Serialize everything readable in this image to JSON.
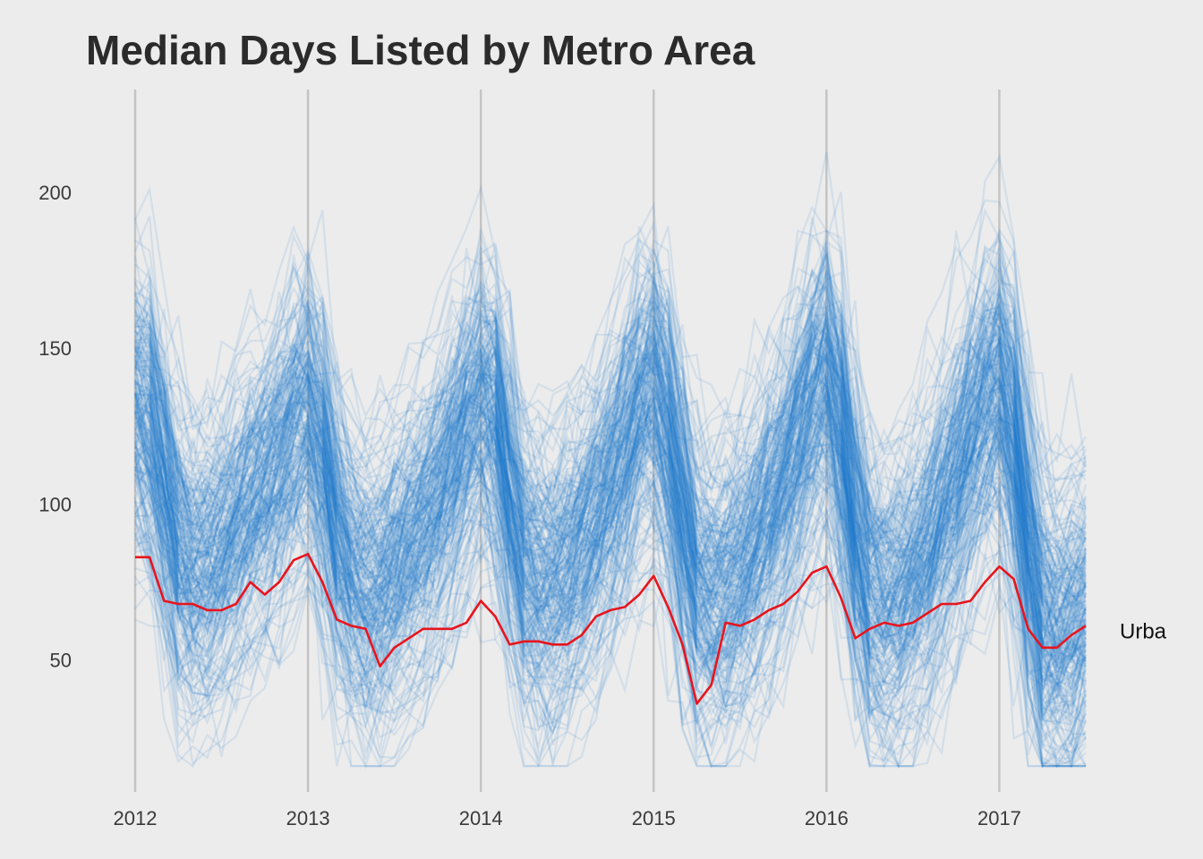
{
  "title": "Median Days Listed by Metro Area",
  "colors": {
    "background": "#ececec",
    "gridline": "#c4c4c4",
    "background_series": "#1f78d1",
    "highlight_series": "#e8141c",
    "text": "#2b2b2b"
  },
  "chart_data": {
    "type": "line",
    "title": "Median Days Listed by Metro Area",
    "xlabel": "",
    "ylabel": "",
    "x_axis": {
      "type": "date",
      "ticks": [
        "2012",
        "2013",
        "2014",
        "2015",
        "2016",
        "2017"
      ],
      "range": [
        "2012-01",
        "2017-07"
      ]
    },
    "y_axis": {
      "ticks": [
        50,
        100,
        150,
        200
      ],
      "range": [
        10,
        235
      ]
    },
    "grid": "vertical",
    "legend": "none",
    "background_series_count": 240,
    "background_series_profile": {
      "note": "many faint series (one per metro area) following the same seasonal cycle",
      "x": [
        "2012-01",
        "2012-02",
        "2012-03",
        "2012-04",
        "2012-05",
        "2012-06",
        "2012-07",
        "2012-08",
        "2012-09",
        "2012-10",
        "2012-11",
        "2012-12",
        "2013-01",
        "2013-02",
        "2013-03",
        "2013-04",
        "2013-05",
        "2013-06",
        "2013-07",
        "2013-08",
        "2013-09",
        "2013-10",
        "2013-11",
        "2013-12",
        "2014-01",
        "2014-02",
        "2014-03",
        "2014-04",
        "2014-05",
        "2014-06",
        "2014-07",
        "2014-08",
        "2014-09",
        "2014-10",
        "2014-11",
        "2014-12",
        "2015-01",
        "2015-02",
        "2015-03",
        "2015-04",
        "2015-05",
        "2015-06",
        "2015-07",
        "2015-08",
        "2015-09",
        "2015-10",
        "2015-11",
        "2015-12",
        "2016-01",
        "2016-02",
        "2016-03",
        "2016-04",
        "2016-05",
        "2016-06",
        "2016-07",
        "2016-08",
        "2016-09",
        "2016-10",
        "2016-11",
        "2016-12",
        "2017-01",
        "2017-02",
        "2017-03",
        "2017-04",
        "2017-05",
        "2017-06",
        "2017-07"
      ],
      "typical_values": [
        130,
        125,
        105,
        85,
        78,
        80,
        85,
        92,
        98,
        105,
        112,
        122,
        128,
        115,
        90,
        78,
        72,
        74,
        80,
        85,
        92,
        100,
        110,
        122,
        132,
        128,
        100,
        80,
        75,
        75,
        80,
        86,
        95,
        105,
        115,
        128,
        135,
        120,
        95,
        75,
        70,
        72,
        78,
        86,
        95,
        105,
        118,
        130,
        140,
        122,
        92,
        72,
        68,
        70,
        76,
        84,
        95,
        105,
        118,
        130,
        138,
        120,
        85,
        62,
        58,
        60,
        68
      ]
    },
    "series": [
      {
        "name": "Urban",
        "color": "#e8141c",
        "x": [
          "2012-01",
          "2012-02",
          "2012-03",
          "2012-04",
          "2012-05",
          "2012-06",
          "2012-07",
          "2012-08",
          "2012-09",
          "2012-10",
          "2012-11",
          "2012-12",
          "2013-01",
          "2013-02",
          "2013-03",
          "2013-04",
          "2013-05",
          "2013-06",
          "2013-07",
          "2013-08",
          "2013-09",
          "2013-10",
          "2013-11",
          "2013-12",
          "2014-01",
          "2014-02",
          "2014-03",
          "2014-04",
          "2014-05",
          "2014-06",
          "2014-07",
          "2014-08",
          "2014-09",
          "2014-10",
          "2014-11",
          "2014-12",
          "2015-01",
          "2015-02",
          "2015-03",
          "2015-04",
          "2015-05",
          "2015-06",
          "2015-07",
          "2015-08",
          "2015-09",
          "2015-10",
          "2015-11",
          "2015-12",
          "2016-01",
          "2016-02",
          "2016-03",
          "2016-04",
          "2016-05",
          "2016-06",
          "2016-07",
          "2016-08",
          "2016-09",
          "2016-10",
          "2016-11",
          "2016-12",
          "2017-01",
          "2017-02",
          "2017-03",
          "2017-04",
          "2017-05",
          "2017-06",
          "2017-07"
        ],
        "values": [
          83,
          83,
          69,
          68,
          68,
          66,
          66,
          68,
          75,
          71,
          75,
          82,
          84,
          75,
          63,
          61,
          60,
          48,
          54,
          57,
          60,
          60,
          60,
          62,
          69,
          64,
          55,
          56,
          56,
          55,
          55,
          58,
          64,
          66,
          67,
          71,
          77,
          67,
          55,
          36,
          42,
          62,
          61,
          63,
          66,
          68,
          72,
          78,
          80,
          70,
          57,
          60,
          62,
          61,
          62,
          65,
          68,
          68,
          69,
          75,
          80,
          76,
          60,
          54,
          54,
          58,
          61
        ]
      }
    ],
    "end_label": "Urba"
  }
}
